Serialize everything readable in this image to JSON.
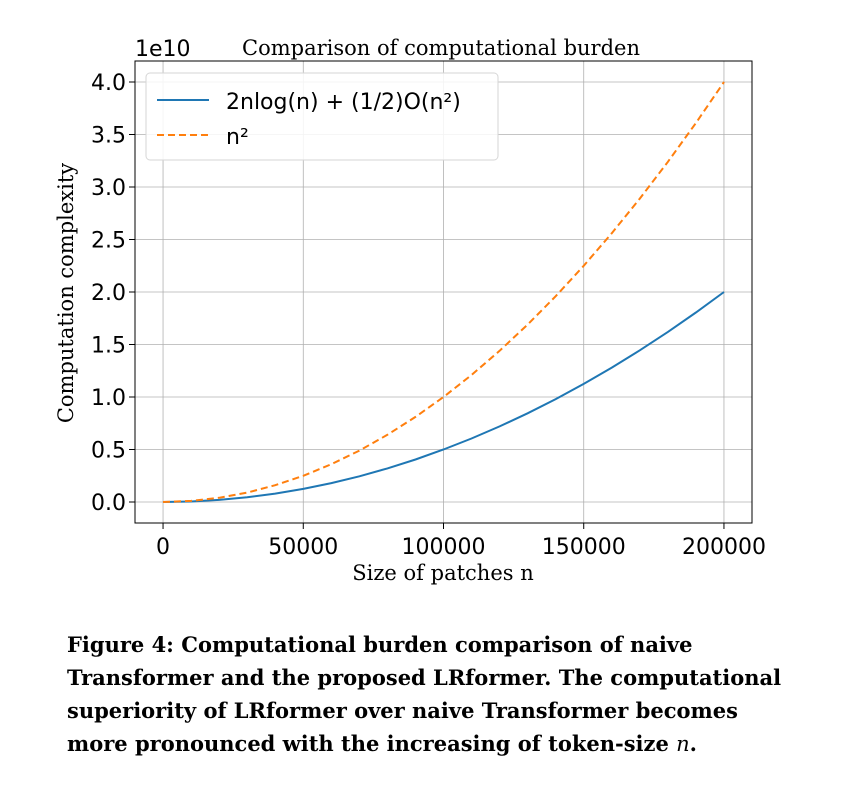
{
  "chart_data": {
    "type": "line",
    "title": "Comparison of computational burden",
    "xlabel": "Size of patches n",
    "ylabel": "Computation complexity",
    "y_offset_label": "1e10",
    "xlim": [
      -10000,
      210000
    ],
    "ylim": [
      -0.2,
      4.2
    ],
    "x_ticks": [
      0,
      50000,
      100000,
      150000,
      200000
    ],
    "x_tick_labels": [
      "0",
      "50000",
      "100000",
      "150000",
      "200000"
    ],
    "y_ticks": [
      0.0,
      0.5,
      1.0,
      1.5,
      2.0,
      2.5,
      3.0,
      3.5,
      4.0
    ],
    "y_tick_labels": [
      "0.0",
      "0.5",
      "1.0",
      "1.5",
      "2.0",
      "2.5",
      "3.0",
      "3.5",
      "4.0"
    ],
    "grid": true,
    "legend_position": "top-left",
    "x": [
      0,
      10000,
      20000,
      30000,
      40000,
      50000,
      60000,
      70000,
      80000,
      90000,
      100000,
      110000,
      120000,
      130000,
      140000,
      150000,
      160000,
      170000,
      180000,
      190000,
      200000
    ],
    "series": [
      {
        "name": "2nlog(n) + (1/2)O(n²)",
        "color": "#1f77b4",
        "style": "solid",
        "values": [
          0.0,
          0.005,
          0.02,
          0.045,
          0.08,
          0.125,
          0.18,
          0.245,
          0.32,
          0.405,
          0.5,
          0.605,
          0.72,
          0.845,
          0.98,
          1.125,
          1.28,
          1.445,
          1.62,
          1.805,
          2.0
        ]
      },
      {
        "name": "n²",
        "color": "#ff7f0e",
        "style": "dashed",
        "values": [
          0.0,
          0.01,
          0.04,
          0.09,
          0.16,
          0.25,
          0.36,
          0.49,
          0.64,
          0.81,
          1.0,
          1.21,
          1.44,
          1.69,
          1.96,
          2.25,
          2.56,
          2.89,
          3.24,
          3.61,
          4.0
        ]
      }
    ]
  },
  "caption": {
    "label": "Figure 4:",
    "text": " Computational burden comparison of naive Transformer and the proposed LRformer. The computational superiority of LRformer over naive Transformer becomes more pronounced with the increasing of token-size ",
    "var": "n",
    "end": "."
  }
}
